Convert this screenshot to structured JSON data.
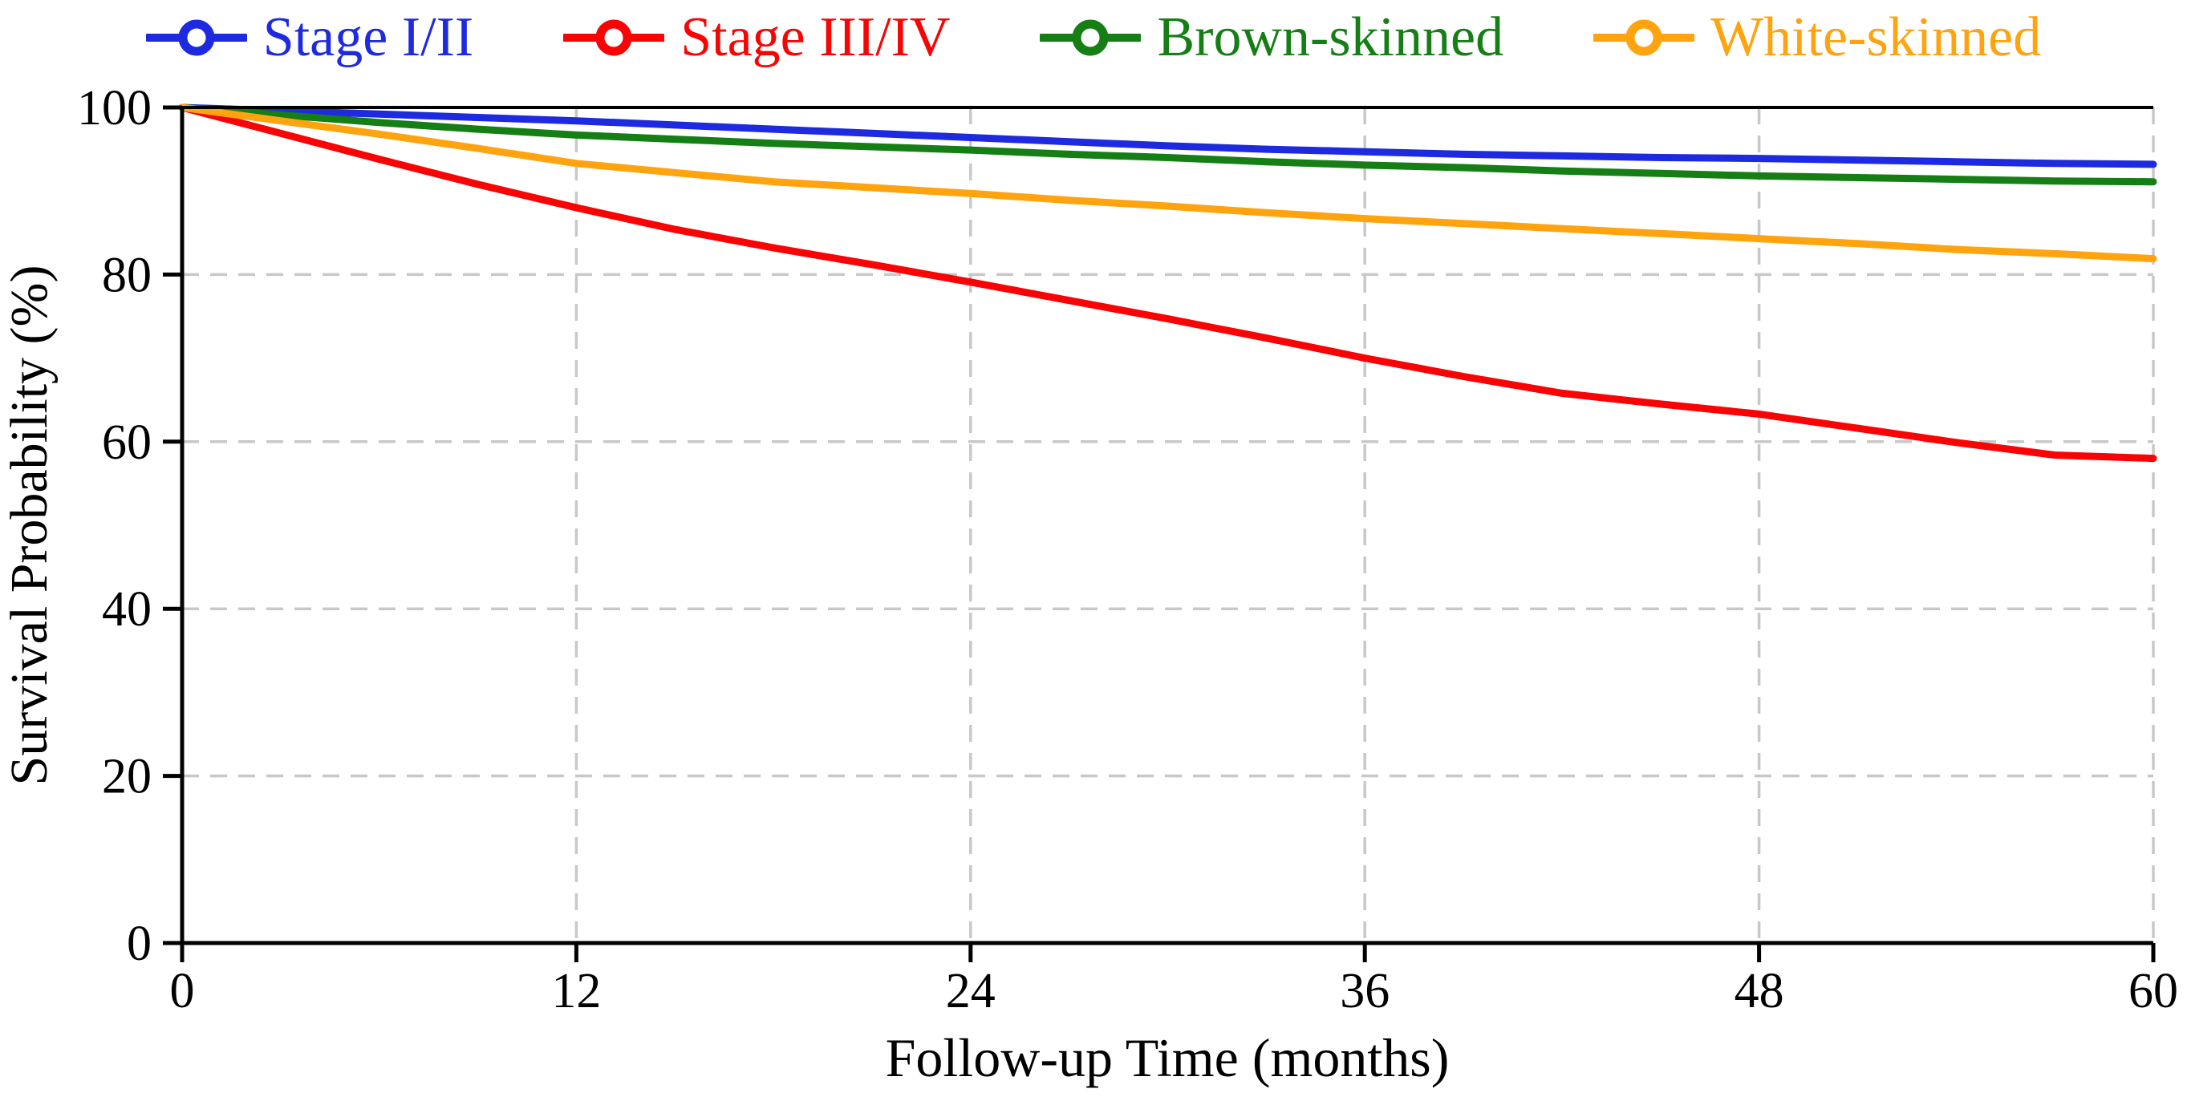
{
  "chart_data": {
    "type": "line",
    "title": "",
    "xlabel": "Follow-up Time (months)",
    "ylabel": "Survival Probability (%)",
    "xlim": [
      0,
      60
    ],
    "ylim": [
      0,
      100
    ],
    "x_ticks": [
      0,
      12,
      24,
      36,
      48,
      60
    ],
    "y_ticks": [
      0,
      20,
      40,
      60,
      80,
      100
    ],
    "grid": "dashed",
    "grid_color": "#c8c8c8",
    "axis_color": "#000000",
    "legend_position": "top",
    "legend_marker": "open-circle",
    "x": [
      0,
      3,
      6,
      9,
      12,
      15,
      18,
      21,
      24,
      27,
      30,
      33,
      36,
      39,
      42,
      45,
      48,
      51,
      54,
      57,
      60
    ],
    "series": [
      {
        "name": "Stage I/II",
        "color": "#1e2ae0",
        "values": [
          100,
          99.6,
          99.2,
          98.8,
          98.4,
          97.9,
          97.4,
          96.9,
          96.4,
          95.9,
          95.4,
          95.0,
          94.7,
          94.4,
          94.2,
          94.0,
          93.9,
          93.7,
          93.5,
          93.3,
          93.2
        ]
      },
      {
        "name": "Stage III/IV",
        "color": "#f80404",
        "values": [
          100,
          96.9,
          93.8,
          90.8,
          88.0,
          85.4,
          83.2,
          81.2,
          79.1,
          76.9,
          74.7,
          72.4,
          70.0,
          67.8,
          65.8,
          64.5,
          63.3,
          61.6,
          59.9,
          58.4,
          58.0
        ]
      },
      {
        "name": "Brown-skinned",
        "color": "#157f15",
        "values": [
          100,
          99.1,
          98.2,
          97.4,
          96.7,
          96.2,
          95.7,
          95.3,
          94.9,
          94.4,
          94.0,
          93.5,
          93.1,
          92.8,
          92.4,
          92.1,
          91.8,
          91.6,
          91.4,
          91.2,
          91.1
        ]
      },
      {
        "name": "White-skinned",
        "color": "#ffa30f",
        "values": [
          100,
          98.4,
          96.8,
          95.1,
          93.3,
          92.2,
          91.1,
          90.4,
          89.7,
          88.9,
          88.2,
          87.4,
          86.7,
          86.1,
          85.5,
          84.9,
          84.3,
          83.7,
          83.0,
          82.5,
          81.9
        ]
      }
    ]
  }
}
